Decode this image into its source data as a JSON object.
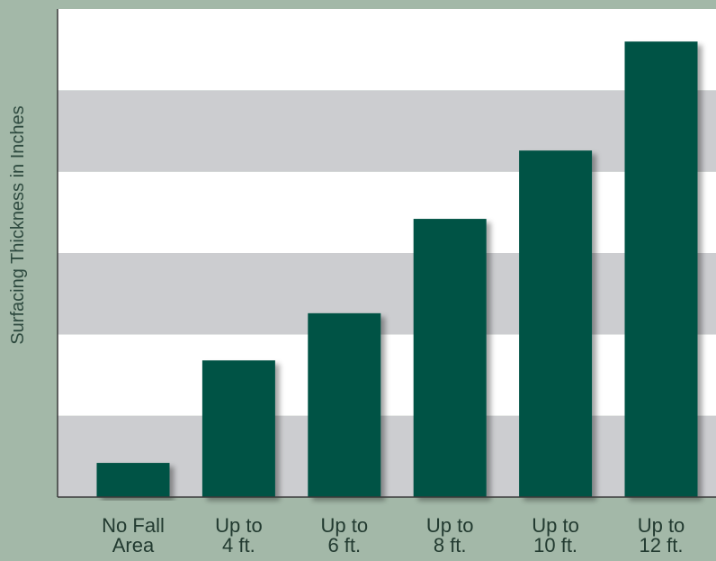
{
  "chart_data": {
    "type": "bar",
    "categories": [
      [
        "No Fall",
        "Area"
      ],
      [
        "Up to",
        "4 ft."
      ],
      [
        "Up to",
        "6 ft."
      ],
      [
        "Up to",
        "8 ft."
      ],
      [
        "Up to",
        "10 ft."
      ],
      [
        "Up to",
        "12 ft."
      ]
    ],
    "values": [
      0.42,
      1.68,
      2.26,
      3.42,
      4.26,
      5.6
    ],
    "ylim": [
      0,
      6
    ],
    "ylabel": "Surfacing Thickness in Inches",
    "xlabel": "",
    "title": "",
    "grid": "alternating horizontal bands",
    "colors": {
      "bar": "#065244",
      "band_light": "#ffffff",
      "band_dark": "#cccdd0",
      "axis": "#3a3a3a",
      "background": "#a3b8a8"
    }
  }
}
